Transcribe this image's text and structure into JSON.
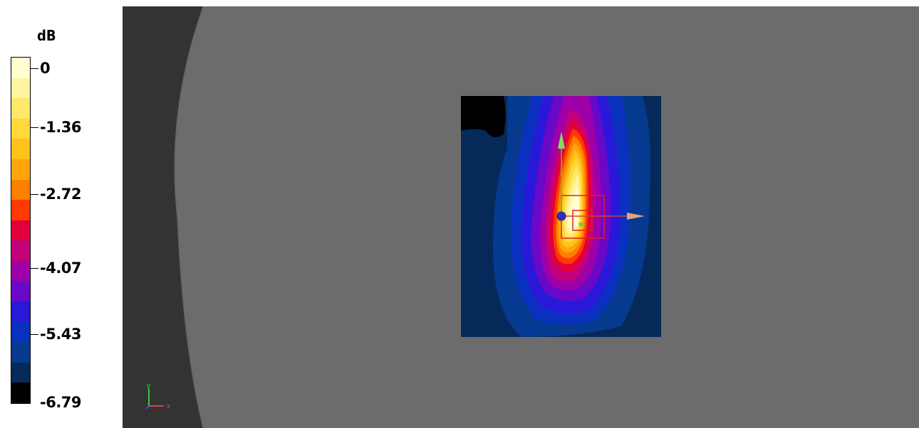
{
  "legend": {
    "unit": "dB",
    "ticks": [
      "0",
      "-1.36",
      "-2.72",
      "-4.07",
      "-5.43",
      "-6.79"
    ],
    "colors": [
      "#ffffd0",
      "#fff5a0",
      "#ffe86a",
      "#ffd83a",
      "#ffc11a",
      "#ffa40c",
      "#ff7f00",
      "#ff3a00",
      "#e2003c",
      "#c2007a",
      "#9d00a8",
      "#6a08c8",
      "#2a18d8",
      "#0a30c0",
      "#053a90",
      "#052a5a",
      "#000000"
    ]
  },
  "scene": {
    "axis_triad": {
      "x_label": "x",
      "y_label": "y"
    },
    "colors": {
      "background": "#6c6c6c",
      "phantom_edge": "#333333",
      "probe_box": "#e02020"
    }
  }
}
